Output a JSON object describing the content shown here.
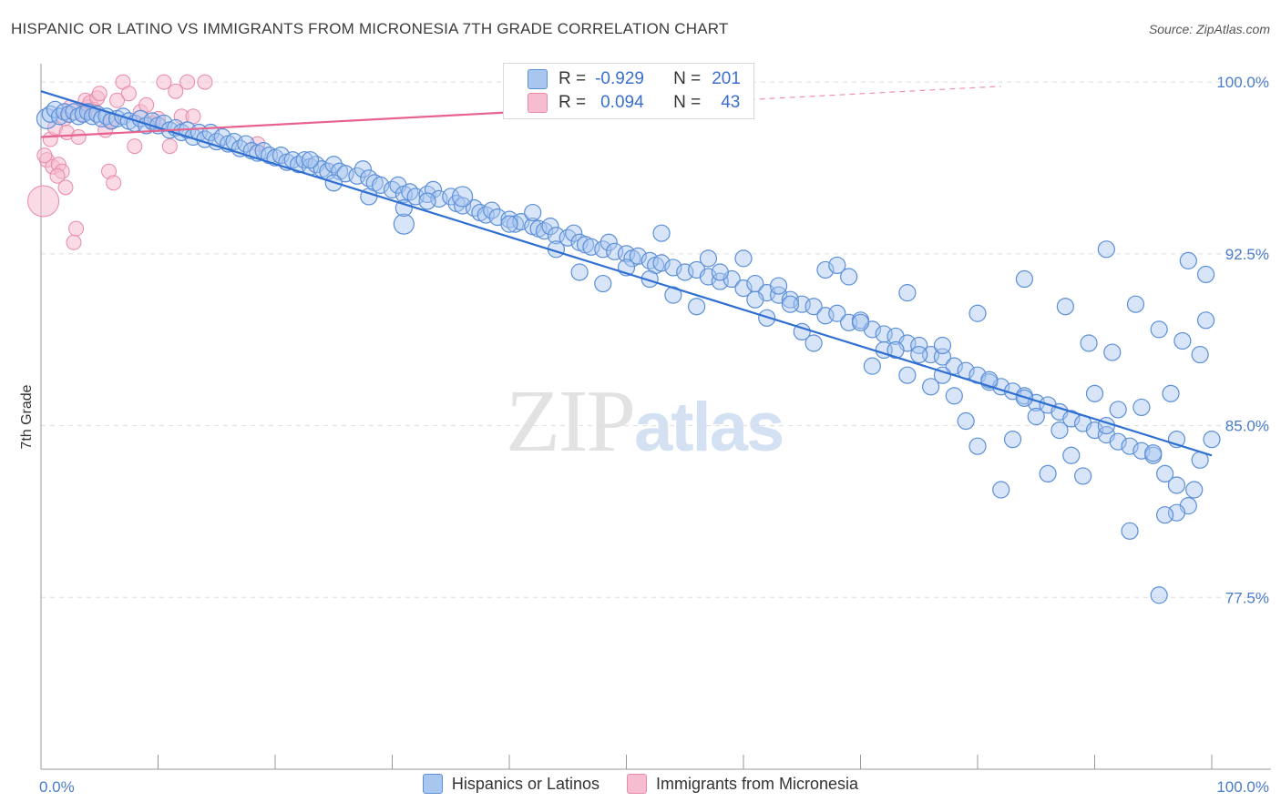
{
  "title": "HISPANIC OR LATINO VS IMMIGRANTS FROM MICRONESIA 7TH GRADE CORRELATION CHART",
  "source": "Source: ZipAtlas.com",
  "watermark": {
    "zip": "ZIP",
    "atlas": "atlas"
  },
  "legend_box": {
    "rows": [
      {
        "r_label": "R =",
        "r_value": "-0.929",
        "n_label": "N =",
        "n_value": "201"
      },
      {
        "r_label": "R =",
        "r_value": "0.094",
        "n_label": "N =",
        "n_value": "43"
      }
    ]
  },
  "colors": {
    "blue_fill": "#a9c6ef",
    "blue_stroke": "#5b8fd8",
    "blue_line": "#2f6fd2",
    "pink_fill": "#f6bcd0",
    "pink_stroke": "#e889a8",
    "pink_line": "#e8628e",
    "tick": "#4a7cc9",
    "grid": "#dddddd"
  },
  "chart_data": {
    "type": "scatter",
    "title": "HISPANIC OR LATINO VS IMMIGRANTS FROM MICRONESIA 7TH GRADE CORRELATION CHART",
    "xlabel": "",
    "ylabel": "7th Grade",
    "xlim": [
      0,
      100
    ],
    "ylim": [
      70,
      100.8
    ],
    "x_tick_labels": [
      "0.0%",
      "100.0%"
    ],
    "y_ticks": [
      100.0,
      92.5,
      85.0,
      77.5
    ],
    "y_tick_labels": [
      "100.0%",
      "92.5%",
      "85.0%",
      "77.5%"
    ],
    "grid": "horizontal dashed",
    "legend": "bottom-center",
    "series": [
      {
        "name": "Hispanics or Latinos",
        "trend": {
          "x": [
            0,
            100
          ],
          "y": [
            99.6,
            83.7
          ],
          "style": "solid"
        },
        "points": [
          [
            0.5,
            98.4
          ],
          [
            0.8,
            98.6
          ],
          [
            1.2,
            98.8
          ],
          [
            1.6,
            98.5
          ],
          [
            2,
            98.7
          ],
          [
            2.4,
            98.6
          ],
          [
            2.8,
            98.7
          ],
          [
            3.2,
            98.5
          ],
          [
            3.6,
            98.6
          ],
          [
            4,
            98.7
          ],
          [
            4.4,
            98.5
          ],
          [
            4.8,
            98.6
          ],
          [
            5.2,
            98.4
          ],
          [
            5.6,
            98.5
          ],
          [
            6,
            98.3
          ],
          [
            6.5,
            98.4
          ],
          [
            7,
            98.5
          ],
          [
            7.5,
            98.3
          ],
          [
            8,
            98.2
          ],
          [
            8.5,
            98.4
          ],
          [
            9,
            98.1
          ],
          [
            9.5,
            98.3
          ],
          [
            10,
            98.1
          ],
          [
            10.5,
            98.2
          ],
          [
            11,
            97.9
          ],
          [
            11.5,
            98.0
          ],
          [
            12,
            97.8
          ],
          [
            12.5,
            97.9
          ],
          [
            13,
            97.6
          ],
          [
            13.5,
            97.8
          ],
          [
            14,
            97.5
          ],
          [
            14.5,
            97.8
          ],
          [
            15,
            97.4
          ],
          [
            15.5,
            97.6
          ],
          [
            16,
            97.3
          ],
          [
            16.5,
            97.4
          ],
          [
            17,
            97.1
          ],
          [
            17.5,
            97.3
          ],
          [
            18,
            97.0
          ],
          [
            18.5,
            96.9
          ],
          [
            19,
            97.0
          ],
          [
            19.5,
            96.8
          ],
          [
            20,
            96.7
          ],
          [
            20.5,
            96.8
          ],
          [
            21,
            96.5
          ],
          [
            21.5,
            96.6
          ],
          [
            22,
            96.4
          ],
          [
            22.5,
            96.6
          ],
          [
            23,
            96.3
          ],
          [
            23.5,
            96.4
          ],
          [
            24,
            96.2
          ],
          [
            24.5,
            96.1
          ],
          [
            25,
            96.4
          ],
          [
            25.5,
            96.1
          ],
          [
            26,
            96.0
          ],
          [
            27,
            95.9
          ],
          [
            27.5,
            96.2
          ],
          [
            28,
            95.8
          ],
          [
            28.5,
            95.6
          ],
          [
            29,
            95.5
          ],
          [
            30,
            95.3
          ],
          [
            30.5,
            95.5
          ],
          [
            31,
            95.1
          ],
          [
            31.5,
            95.2
          ],
          [
            32,
            95.0
          ],
          [
            33,
            95.1
          ],
          [
            33.5,
            95.3
          ],
          [
            34,
            94.9
          ],
          [
            35,
            95.0
          ],
          [
            35.5,
            94.7
          ],
          [
            36,
            94.6
          ],
          [
            37,
            94.5
          ],
          [
            37.5,
            94.3
          ],
          [
            38,
            94.2
          ],
          [
            38.5,
            94.4
          ],
          [
            39,
            94.1
          ],
          [
            40,
            94.0
          ],
          [
            40.5,
            93.8
          ],
          [
            41,
            93.9
          ],
          [
            42,
            93.7
          ],
          [
            42.5,
            93.6
          ],
          [
            43,
            93.5
          ],
          [
            43.5,
            93.7
          ],
          [
            44,
            93.3
          ],
          [
            45,
            93.2
          ],
          [
            45.5,
            93.4
          ],
          [
            46,
            93.0
          ],
          [
            46.5,
            92.9
          ],
          [
            47,
            92.8
          ],
          [
            48,
            92.7
          ],
          [
            48.5,
            93.0
          ],
          [
            49,
            92.6
          ],
          [
            50,
            92.5
          ],
          [
            50.5,
            92.3
          ],
          [
            51,
            92.4
          ],
          [
            52,
            92.2
          ],
          [
            52.5,
            92.0
          ],
          [
            53,
            92.1
          ],
          [
            54,
            91.9
          ],
          [
            55,
            91.7
          ],
          [
            56,
            91.8
          ],
          [
            57,
            91.5
          ],
          [
            58,
            91.3
          ],
          [
            59,
            91.4
          ],
          [
            60,
            91.0
          ],
          [
            61,
            91.2
          ],
          [
            62,
            90.8
          ],
          [
            63,
            90.7
          ],
          [
            64,
            90.5
          ],
          [
            65,
            90.3
          ],
          [
            66,
            90.2
          ],
          [
            67,
            89.8
          ],
          [
            68,
            89.9
          ],
          [
            69,
            89.5
          ],
          [
            70,
            89.6
          ],
          [
            71,
            89.2
          ],
          [
            72,
            89.0
          ],
          [
            73,
            88.9
          ],
          [
            74,
            88.6
          ],
          [
            75,
            88.5
          ],
          [
            76,
            88.1
          ],
          [
            77,
            88.0
          ],
          [
            78,
            87.6
          ],
          [
            79,
            87.4
          ],
          [
            80,
            87.2
          ],
          [
            81,
            86.9
          ],
          [
            82,
            86.7
          ],
          [
            83,
            86.5
          ],
          [
            84,
            86.3
          ],
          [
            85,
            86.0
          ],
          [
            86,
            85.9
          ],
          [
            87,
            85.6
          ],
          [
            88,
            85.3
          ],
          [
            89,
            85.1
          ],
          [
            90,
            84.8
          ],
          [
            91,
            84.6
          ],
          [
            92,
            84.3
          ],
          [
            93,
            84.1
          ],
          [
            94,
            83.9
          ],
          [
            95,
            83.7
          ],
          [
            23,
            96.6
          ],
          [
            25,
            95.6
          ],
          [
            28,
            95.0
          ],
          [
            31,
            93.8
          ],
          [
            33,
            94.8
          ],
          [
            36,
            95.0
          ],
          [
            40,
            93.8
          ],
          [
            42,
            94.3
          ],
          [
            44,
            92.7
          ],
          [
            46,
            91.7
          ],
          [
            48,
            91.2
          ],
          [
            50,
            91.9
          ],
          [
            52,
            91.4
          ],
          [
            53,
            93.4
          ],
          [
            54,
            90.7
          ],
          [
            56,
            90.2
          ],
          [
            57,
            92.3
          ],
          [
            58,
            91.7
          ],
          [
            60,
            92.3
          ],
          [
            61,
            90.5
          ],
          [
            62,
            89.7
          ],
          [
            63,
            91.1
          ],
          [
            64,
            90.3
          ],
          [
            65,
            89.1
          ],
          [
            66,
            88.6
          ],
          [
            67,
            91.8
          ],
          [
            68,
            92.0
          ],
          [
            69,
            91.5
          ],
          [
            70,
            89.5
          ],
          [
            71,
            87.6
          ],
          [
            72,
            88.3
          ],
          [
            73,
            88.3
          ],
          [
            74,
            90.8
          ],
          [
            75,
            88.1
          ],
          [
            76,
            86.7
          ],
          [
            77,
            87.2
          ],
          [
            78,
            86.3
          ],
          [
            79,
            85.2
          ],
          [
            80,
            84.1
          ],
          [
            81,
            87.0
          ],
          [
            82,
            82.2
          ],
          [
            83,
            84.4
          ],
          [
            84,
            86.2
          ],
          [
            85,
            85.4
          ],
          [
            86,
            82.9
          ],
          [
            87,
            84.8
          ],
          [
            88,
            83.7
          ],
          [
            89,
            82.8
          ],
          [
            90,
            86.4
          ],
          [
            91,
            85.0
          ],
          [
            93,
            80.4
          ],
          [
            94,
            85.8
          ],
          [
            95,
            83.8
          ],
          [
            96,
            82.9
          ],
          [
            97,
            82.4
          ],
          [
            98,
            81.5
          ],
          [
            99,
            83.5
          ],
          [
            100,
            84.4
          ],
          [
            93.5,
            90.3
          ],
          [
            91,
            92.7
          ],
          [
            95.5,
            89.2
          ],
          [
            97.5,
            88.7
          ],
          [
            98.5,
            82.2
          ],
          [
            97,
            84.4
          ],
          [
            99,
            88.1
          ],
          [
            99.5,
            89.6
          ],
          [
            98,
            92.2
          ],
          [
            99.5,
            91.6
          ],
          [
            92,
            85.7
          ],
          [
            96.5,
            86.4
          ],
          [
            89.5,
            88.6
          ],
          [
            91.5,
            88.2
          ],
          [
            87.5,
            90.2
          ],
          [
            84,
            91.4
          ],
          [
            80,
            89.9
          ],
          [
            77,
            88.5
          ],
          [
            74,
            87.2
          ],
          [
            95.5,
            77.6
          ],
          [
            97,
            81.2
          ],
          [
            96,
            81.1
          ],
          [
            31,
            94.5
          ]
        ],
        "point_sizes": {
          "large": [
            [
              0.5,
              98.4
            ],
            [
              3,
              98.7
            ],
            [
              31,
              93.8
            ],
            [
              36,
              95.0
            ]
          ]
        }
      },
      {
        "name": "Immigrants from Micronesia",
        "trend": {
          "x": [
            0,
            100
          ],
          "y": [
            97.6,
            100.3
          ],
          "style": "solid to 40%, dashed beyond"
        },
        "points": [
          [
            0.2,
            94.8
          ],
          [
            0.5,
            96.6
          ],
          [
            0.8,
            97.5
          ],
          [
            1,
            96.3
          ],
          [
            1.2,
            98.0
          ],
          [
            1.5,
            96.4
          ],
          [
            1.8,
            96.1
          ],
          [
            2,
            98.4
          ],
          [
            2.2,
            97.8
          ],
          [
            2.5,
            98.9
          ],
          [
            2.8,
            93.0
          ],
          [
            3,
            93.6
          ],
          [
            3.2,
            97.6
          ],
          [
            3.5,
            98.6
          ],
          [
            3.8,
            99.2
          ],
          [
            4,
            98.9
          ],
          [
            4.2,
            99.1
          ],
          [
            4.5,
            98.8
          ],
          [
            4.8,
            99.3
          ],
          [
            5,
            99.5
          ],
          [
            5.5,
            97.9
          ],
          [
            5.8,
            96.1
          ],
          [
            6,
            98.3
          ],
          [
            6.5,
            99.2
          ],
          [
            7,
            100.0
          ],
          [
            7.5,
            99.5
          ],
          [
            8,
            97.2
          ],
          [
            8.5,
            98.7
          ],
          [
            9,
            99.0
          ],
          [
            9.5,
            98.2
          ],
          [
            10,
            98.4
          ],
          [
            10.5,
            100.0
          ],
          [
            11,
            97.2
          ],
          [
            11.5,
            99.6
          ],
          [
            12,
            98.5
          ],
          [
            12.5,
            100.0
          ],
          [
            13,
            98.5
          ],
          [
            14,
            100.0
          ],
          [
            0.3,
            96.8
          ],
          [
            1.4,
            95.9
          ],
          [
            2.1,
            95.4
          ],
          [
            6.2,
            95.6
          ],
          [
            18.5,
            97.3
          ]
        ],
        "point_sizes": {
          "large": [
            [
              0.2,
              94.8
            ]
          ]
        }
      }
    ]
  },
  "bottom_legend": [
    {
      "label": "Hispanics or Latinos"
    },
    {
      "label": "Immigrants from Micronesia"
    }
  ]
}
